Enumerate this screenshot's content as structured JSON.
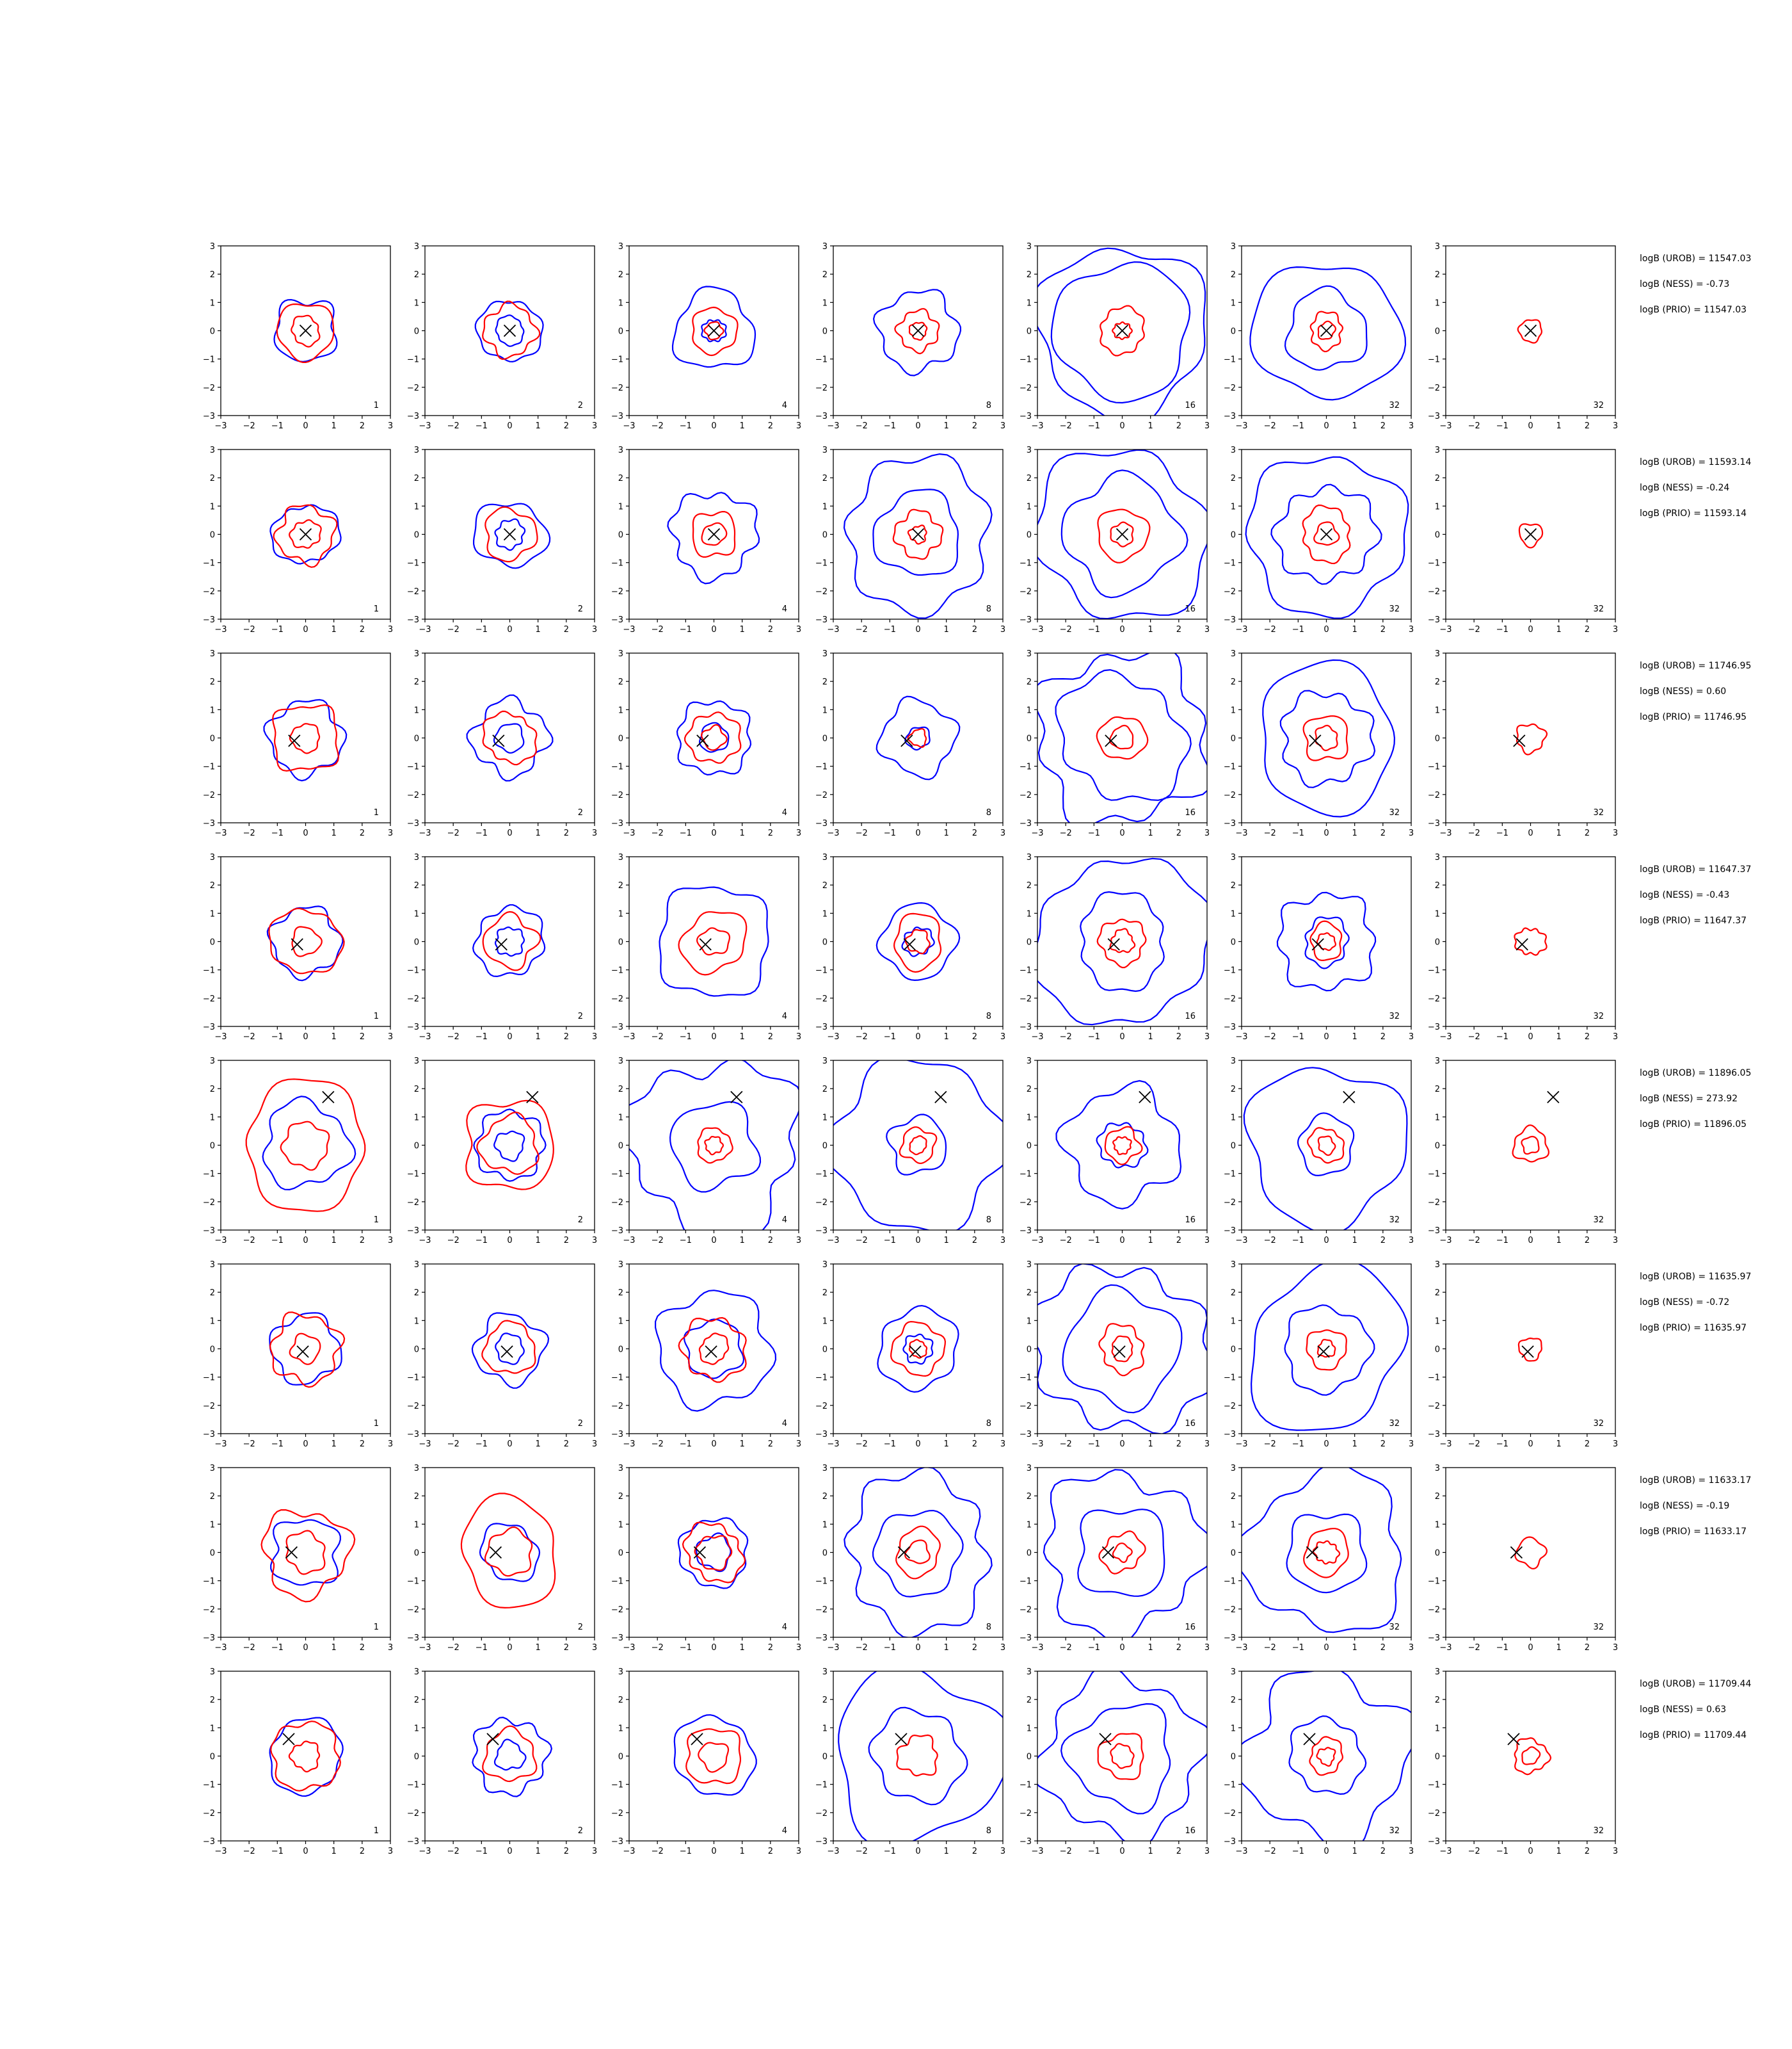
{
  "chart_data": {
    "type": "contour",
    "layout": {
      "rows": 8,
      "cols": 7
    },
    "xlim": [
      -3,
      3
    ],
    "ylim": [
      -3,
      3
    ],
    "tick_values": [
      -3,
      -2,
      -1,
      0,
      1,
      2,
      3
    ],
    "tick_labels": [
      "−3",
      "−2",
      "−1",
      "0",
      "1",
      "2",
      "3"
    ],
    "ess_labels": [
      "1",
      "2",
      "4",
      "8",
      "16",
      "32",
      "32"
    ],
    "colors": {
      "blue": "#0000ff",
      "red": "#ff0000",
      "marker": "#000000"
    },
    "rows": [
      {
        "marker": [
          0.0,
          0.0
        ],
        "stats": {
          "urob": "logB (UROB) = 11547.03",
          "ness": "logB (NESS) = -0.73",
          "prio": "logB (PRIO) = 11547.03"
        },
        "panels": [
          {
            "blue": [
              1.1
            ],
            "red": [
              0.5,
              1.0
            ]
          },
          {
            "blue": [
              0.5,
              1.1
            ],
            "red": [
              0.9
            ]
          },
          {
            "blue": [
              0.4,
              1.4
            ],
            "red": [
              0.3,
              0.8
            ]
          },
          {
            "blue": [
              1.4
            ],
            "red": [
              0.3,
              0.7
            ]
          },
          {
            "blue": [
              2.4,
              3.0
            ],
            "red": [
              0.3,
              0.8
            ]
          },
          {
            "blue": [
              1.4,
              2.5
            ],
            "red": [
              0.3,
              0.6
            ]
          },
          {
            "blue": [],
            "red": [
              0.4
            ]
          }
        ]
      },
      {
        "marker": [
          0.0,
          0.0
        ],
        "stats": {
          "urob": "logB (UROB) = 11593.14",
          "ness": "logB (NESS) = -0.24",
          "prio": "logB (PRIO) = 11593.14"
        },
        "panels": [
          {
            "blue": [
              1.1
            ],
            "red": [
              0.5,
              1.0
            ]
          },
          {
            "blue": [
              0.5,
              1.2
            ],
            "red": [
              0.9
            ]
          },
          {
            "blue": [
              1.5
            ],
            "red": [
              0.4,
              0.8
            ]
          },
          {
            "blue": [
              1.5,
              2.6
            ],
            "red": [
              0.3,
              0.8
            ]
          },
          {
            "blue": [
              2.0,
              3.0
            ],
            "red": [
              0.4,
              0.9
            ]
          },
          {
            "blue": [
              1.7,
              2.8
            ],
            "red": [
              0.4,
              0.9
            ]
          },
          {
            "blue": [],
            "red": [
              0.4
            ]
          }
        ]
      },
      {
        "marker": [
          -0.4,
          -0.1
        ],
        "stats": {
          "urob": "logB (UROB) = 11746.95",
          "ness": "logB (NESS) = 0.60",
          "prio": "logB (PRIO) = 11746.95"
        },
        "panels": [
          {
            "blue": [
              1.3
            ],
            "red": [
              0.5,
              1.2
            ]
          },
          {
            "blue": [
              0.5,
              1.3
            ],
            "red": [
              0.9
            ]
          },
          {
            "blue": [
              0.5,
              1.3
            ],
            "red": [
              0.4,
              0.9
            ]
          },
          {
            "blue": [
              0.4,
              1.3
            ],
            "red": [
              0.3
            ]
          },
          {
            "blue": [
              2.2,
              3.0
            ],
            "red": [
              0.4,
              0.8
            ]
          },
          {
            "blue": [
              1.6,
              2.5
            ],
            "red": [
              0.4,
              0.8
            ]
          },
          {
            "blue": [],
            "red": [
              0.5
            ]
          }
        ]
      },
      {
        "marker": [
          -0.3,
          -0.1
        ],
        "stats": {
          "urob": "logB (UROB) = 11647.37",
          "ness": "logB (NESS) = -0.43",
          "prio": "logB (PRIO) = 11647.37"
        },
        "panels": [
          {
            "blue": [
              1.2
            ],
            "red": [
              0.5,
              1.2
            ]
          },
          {
            "blue": [
              0.5,
              1.2
            ],
            "red": [
              0.9
            ]
          },
          {
            "blue": [
              2.0
            ],
            "red": [
              0.5,
              1.1
            ]
          },
          {
            "blue": [
              0.5,
              1.3
            ],
            "red": [
              0.4,
              0.9
            ]
          },
          {
            "blue": [
              1.6,
              3.0
            ],
            "red": [
              0.4,
              0.8
            ]
          },
          {
            "blue": [
              0.8,
              1.7
            ],
            "red": [
              0.3,
              0.6
            ]
          },
          {
            "blue": [],
            "red": [
              0.5
            ]
          }
        ]
      },
      {
        "marker": [
          0.8,
          1.7
        ],
        "stats": {
          "urob": "logB (UROB) = 11896.05",
          "ness": "logB (NESS) = 273.92",
          "prio": "logB (PRIO) = 11896.05"
        },
        "panels": [
          {
            "blue": [
              1.5
            ],
            "red": [
              0.8,
              2.2
            ]
          },
          {
            "blue": [
              0.5,
              1.2
            ],
            "red": [
              1.0,
              1.6
            ]
          },
          {
            "blue": [
              1.5,
              3.0
            ],
            "red": [
              0.3,
              0.6
            ]
          },
          {
            "blue": [
              1.0,
              3.0
            ],
            "red": [
              0.3,
              0.6
            ]
          },
          {
            "blue": [
              0.8,
              2.0
            ],
            "red": [
              0.3,
              0.6
            ]
          },
          {
            "blue": [
              1.0,
              2.8
            ],
            "red": [
              0.3,
              0.6
            ]
          },
          {
            "blue": [],
            "red": [
              0.3,
              0.6
            ]
          }
        ]
      },
      {
        "marker": [
          -0.1,
          -0.1
        ],
        "stats": {
          "urob": "logB (UROB) = 11635.97",
          "ness": "logB (NESS) = -0.72",
          "prio": "logB (PRIO) = 11635.97"
        },
        "panels": [
          {
            "blue": [
              1.2
            ],
            "red": [
              0.5,
              1.2
            ]
          },
          {
            "blue": [
              0.5,
              1.2
            ],
            "red": [
              0.9
            ]
          },
          {
            "blue": [
              1.0,
              2.0
            ],
            "red": [
              0.5,
              1.1
            ]
          },
          {
            "blue": [
              0.5,
              1.4
            ],
            "red": [
              0.3,
              0.9
            ]
          },
          {
            "blue": [
              2.0,
              3.0
            ],
            "red": [
              0.4,
              0.8
            ]
          },
          {
            "blue": [
              1.5,
              2.8
            ],
            "red": [
              0.3,
              0.7
            ]
          },
          {
            "blue": [],
            "red": [
              0.4
            ]
          }
        ]
      },
      {
        "marker": [
          -0.5,
          0.0
        ],
        "stats": {
          "urob": "logB (UROB) = 11633.17",
          "ness": "logB (NESS) = -0.19",
          "prio": "logB (PRIO) = 11633.17"
        },
        "panels": [
          {
            "blue": [
              1.2
            ],
            "red": [
              0.7,
              1.5
            ]
          },
          {
            "blue": [
              1.0
            ],
            "red": [
              0.8,
              1.8
            ]
          },
          {
            "blue": [
              0.6,
              1.2
            ],
            "red": [
              0.6,
              1.0
            ]
          },
          {
            "blue": [
              1.5,
              2.6
            ],
            "red": [
              0.4,
              0.8
            ]
          },
          {
            "blue": [
              1.6,
              2.8
            ],
            "red": [
              0.3,
              0.7
            ]
          },
          {
            "blue": [
              1.4,
              2.8
            ],
            "red": [
              0.4,
              0.8
            ]
          },
          {
            "blue": [],
            "red": [
              0.5
            ]
          }
        ]
      },
      {
        "marker": [
          -0.6,
          0.6
        ],
        "stats": {
          "urob": "logB (UROB) = 11709.44",
          "ness": "logB (NESS) = 0.63",
          "prio": "logB (PRIO) = 11709.44"
        },
        "panels": [
          {
            "blue": [
              1.3
            ],
            "red": [
              0.5,
              1.2
            ]
          },
          {
            "blue": [
              0.5,
              1.3
            ],
            "red": [
              0.9
            ]
          },
          {
            "blue": [
              1.4
            ],
            "red": [
              0.5,
              1.0
            ]
          },
          {
            "blue": [
              1.6,
              3.0
            ],
            "red": [
              0.7
            ]
          },
          {
            "blue": [
              1.8,
              2.8
            ],
            "red": [
              0.4,
              0.8
            ]
          },
          {
            "blue": [
              1.3,
              2.9
            ],
            "red": [
              0.3,
              0.6
            ]
          },
          {
            "blue": [],
            "red": [
              0.3,
              0.6
            ]
          }
        ]
      }
    ]
  }
}
